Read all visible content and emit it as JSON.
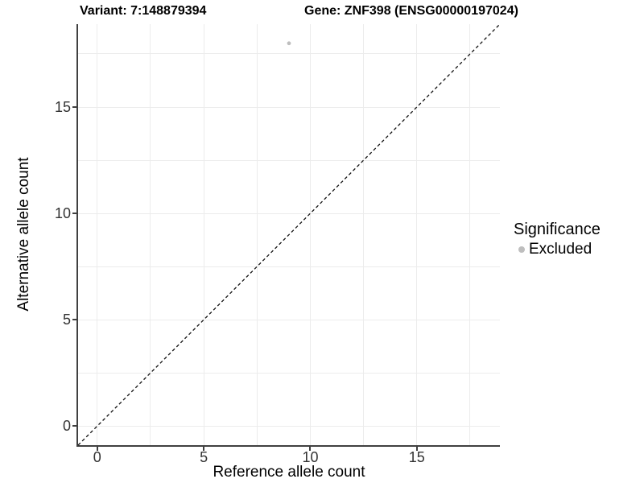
{
  "chart_data": {
    "type": "scatter",
    "title_left": "Variant: 7:148879394",
    "title_right": "Gene: ZNF398 (ENSG00000197024)",
    "xlabel": "Reference allele count",
    "ylabel": "Alternative allele count",
    "xlim": [
      -0.9,
      18.9
    ],
    "ylim": [
      -0.9,
      18.9
    ],
    "xticks": [
      0,
      5,
      10,
      15
    ],
    "yticks": [
      0,
      5,
      10,
      15
    ],
    "grid_step": 2.5,
    "grid": true,
    "points": [
      {
        "x": 9,
        "y": 18,
        "series": "Excluded"
      }
    ],
    "reference_line": {
      "kind": "identity",
      "style": "dashed"
    },
    "legend": {
      "title": "Significance",
      "position": "right",
      "entries": [
        {
          "label": "Excluded",
          "color": "#bebebe"
        }
      ]
    },
    "colors": {
      "point": "#bebebe",
      "grid": "#ececec",
      "axis": "#404040",
      "tick_label": "#333333",
      "dashed_line": "#111111",
      "background": "#ffffff"
    }
  }
}
